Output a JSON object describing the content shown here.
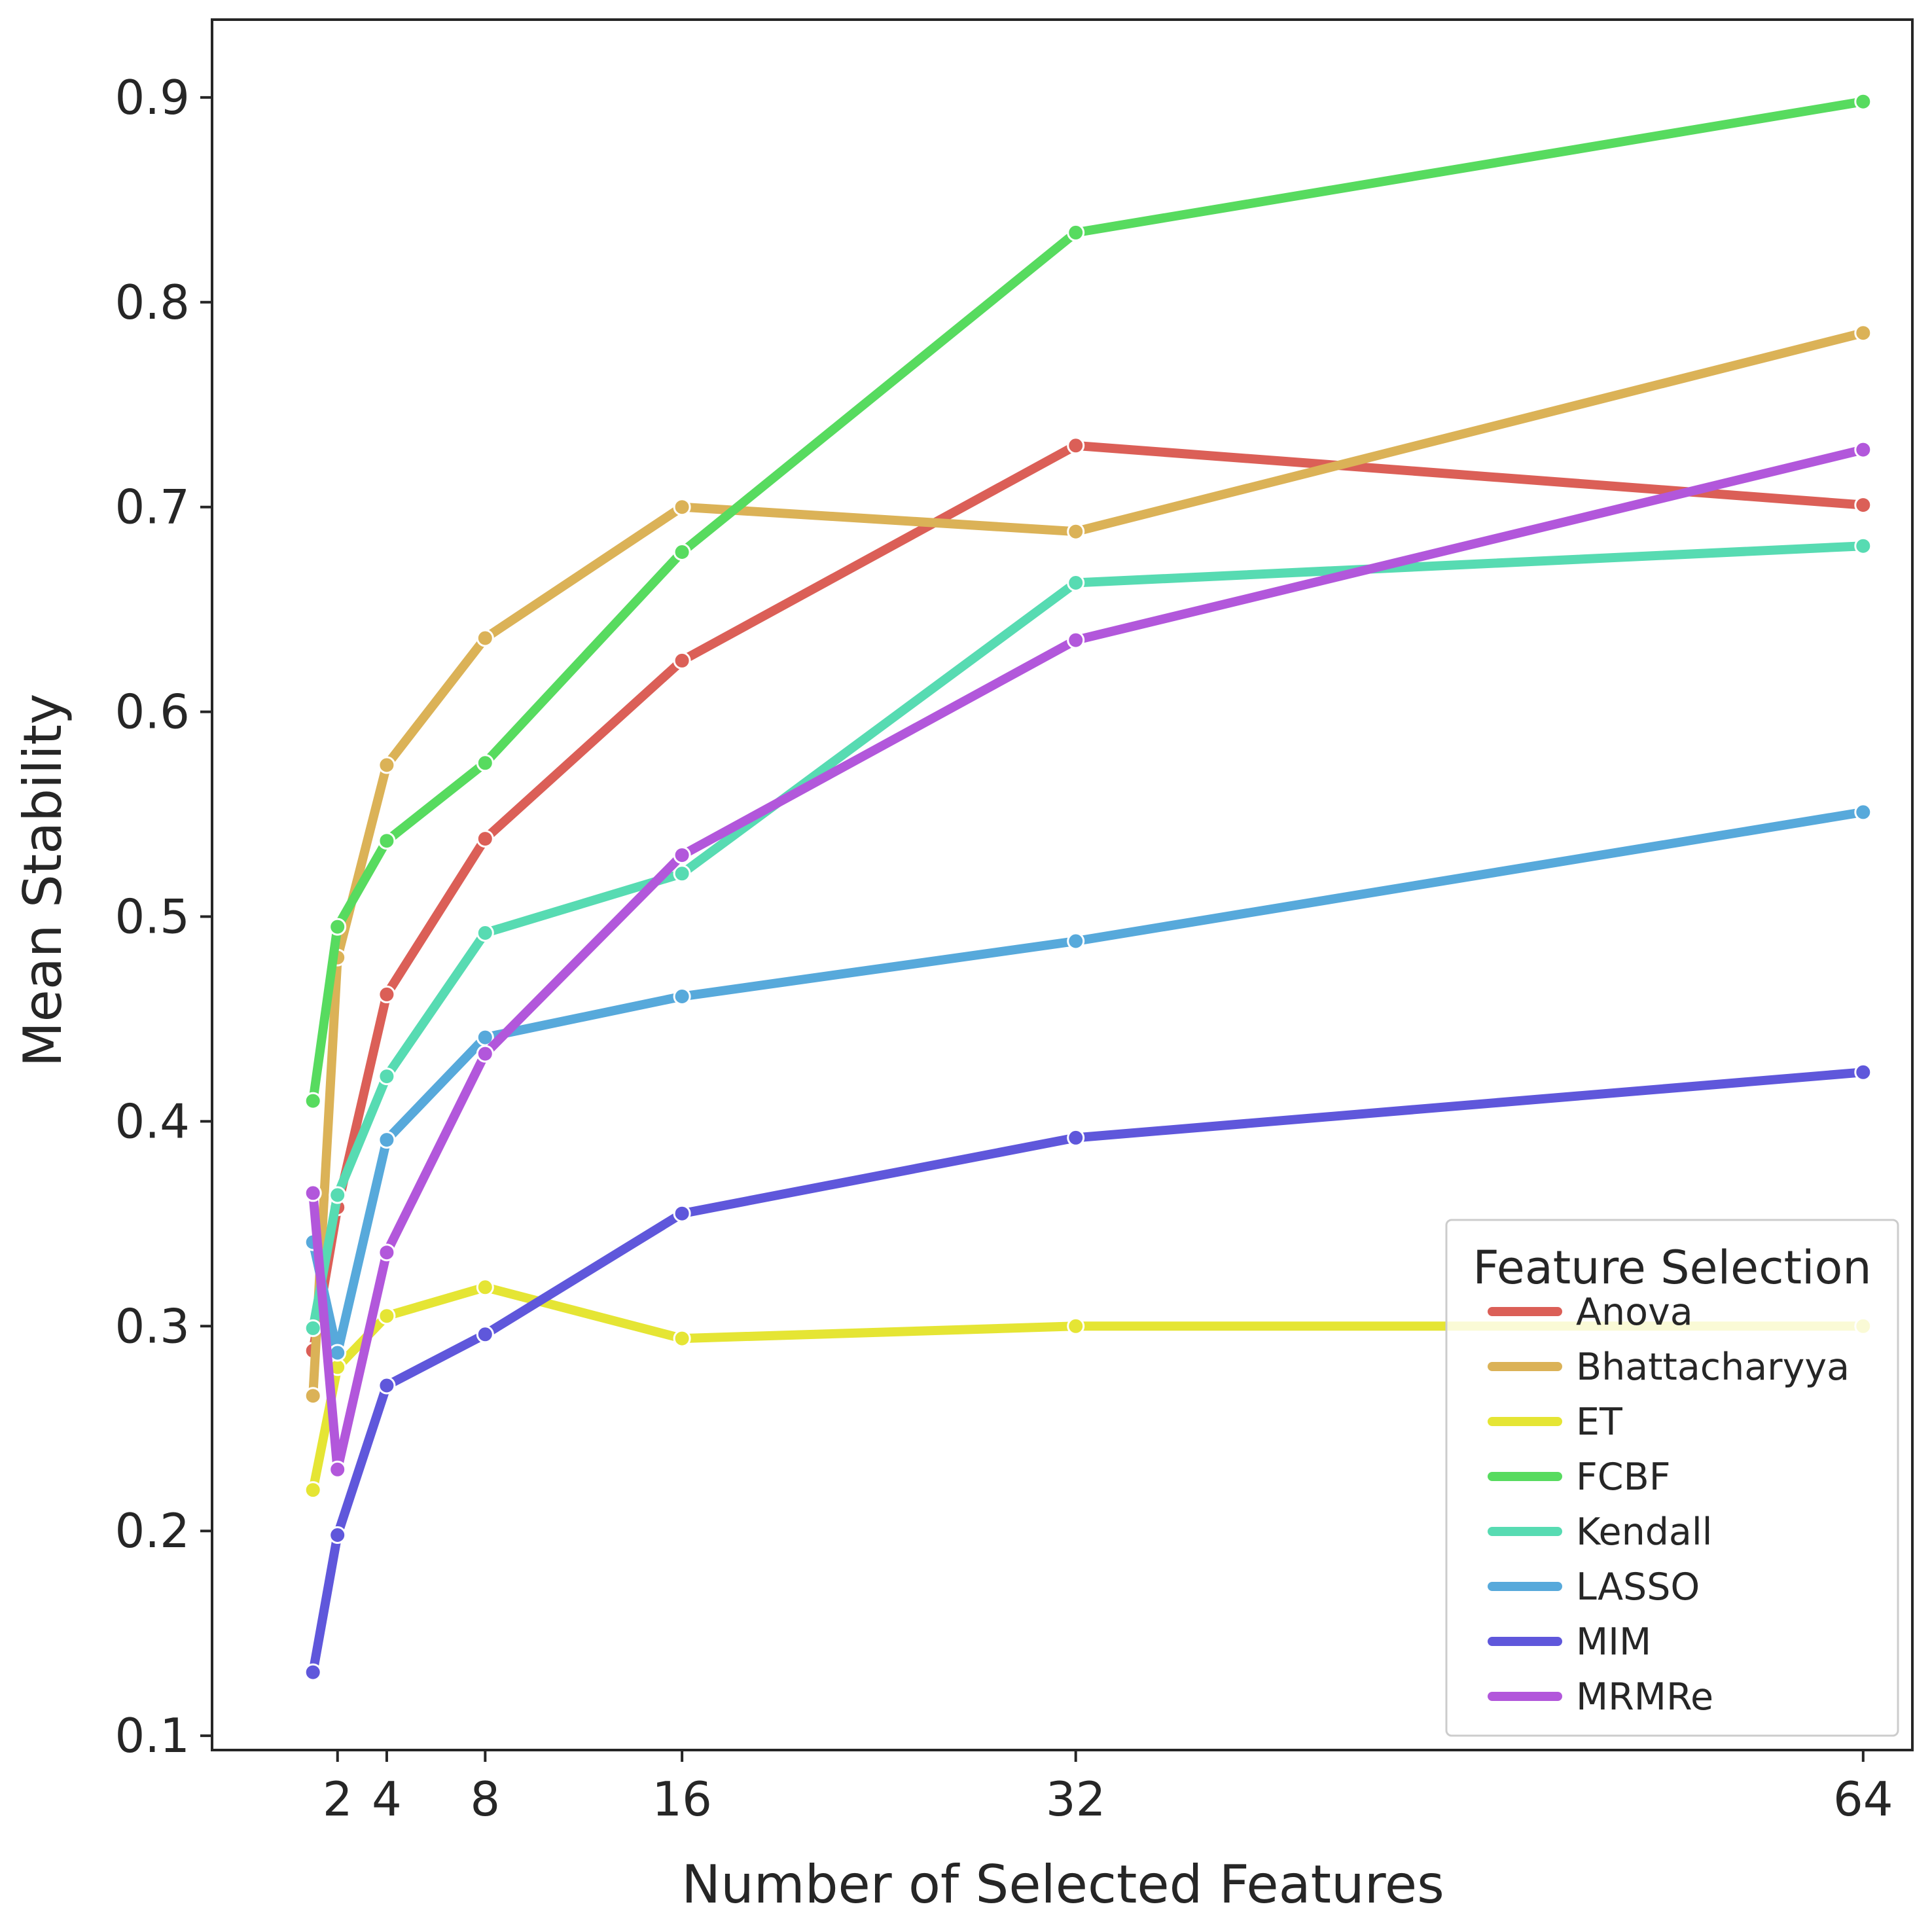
{
  "chart_data": {
    "type": "line",
    "title": "",
    "xlabel": "Number of Selected Features",
    "ylabel": "Mean Stability",
    "x": [
      1,
      2,
      4,
      8,
      16,
      32,
      64
    ],
    "xticks": [
      2,
      4,
      8,
      16,
      32,
      64
    ],
    "yticks": [
      0.1,
      0.2,
      0.3,
      0.4,
      0.5,
      0.6,
      0.7,
      0.8,
      0.9
    ],
    "xlim": [
      -3.1,
      66
    ],
    "ylim": [
      0.093,
      0.938
    ],
    "grid": false,
    "legend": {
      "title": "Feature Selection",
      "placement": "bottom-right"
    },
    "series": [
      {
        "name": "Anova",
        "color": "#db5f57",
        "values": [
          0.288,
          0.358,
          0.462,
          0.538,
          0.625,
          0.73,
          0.701
        ]
      },
      {
        "name": "Bhattacharyya",
        "color": "#dbb257",
        "values": [
          0.266,
          0.48,
          0.574,
          0.636,
          0.7,
          0.688,
          0.785
        ]
      },
      {
        "name": "ET",
        "color": "#e5e534",
        "values": [
          0.22,
          0.28,
          0.305,
          0.319,
          0.294,
          0.3,
          0.3
        ]
      },
      {
        "name": "FCBF",
        "color": "#57db5f",
        "values": [
          0.41,
          0.495,
          0.537,
          0.575,
          0.678,
          0.834,
          0.898
        ]
      },
      {
        "name": "Kendall",
        "color": "#57dbb2",
        "values": [
          0.299,
          0.364,
          0.422,
          0.492,
          0.521,
          0.663,
          0.681
        ]
      },
      {
        "name": "LASSO",
        "color": "#57a9db",
        "values": [
          0.341,
          0.287,
          0.391,
          0.441,
          0.461,
          0.488,
          0.551
        ]
      },
      {
        "name": "MIM",
        "color": "#5f57db",
        "values": [
          0.131,
          0.198,
          0.271,
          0.296,
          0.355,
          0.392,
          0.424
        ]
      },
      {
        "name": "MRMRe",
        "color": "#b257db",
        "values": [
          0.365,
          0.23,
          0.336,
          0.433,
          0.53,
          0.635,
          0.728
        ]
      }
    ]
  }
}
